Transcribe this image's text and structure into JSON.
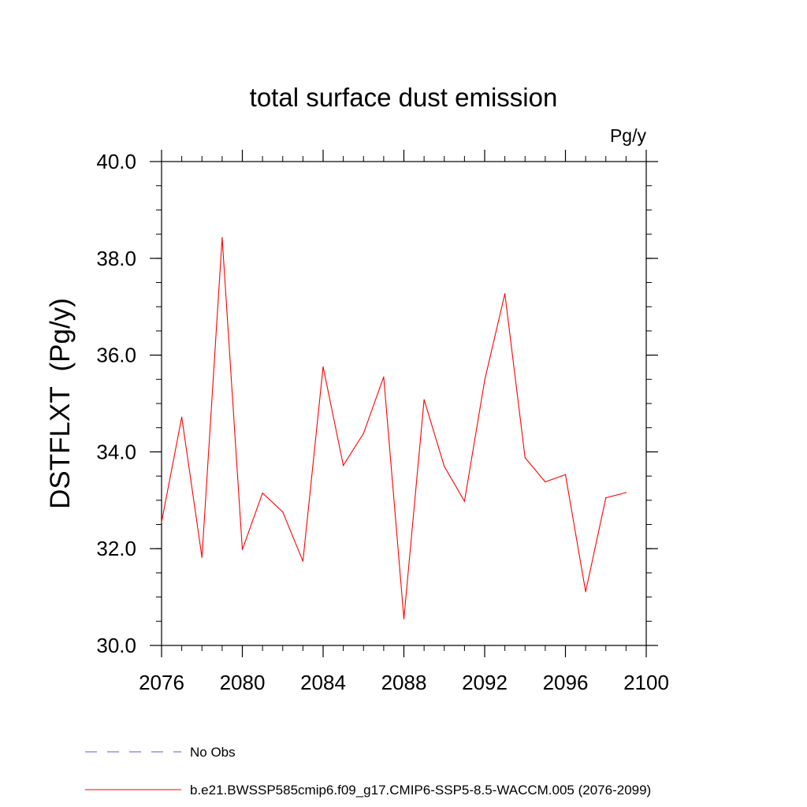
{
  "chart_data": {
    "type": "line",
    "title": "total surface dust emission",
    "units_label": "Pg/y",
    "ylabel": "DSTFLXT  (Pg/y)",
    "xlabel": "",
    "xlim": [
      2076,
      2100
    ],
    "ylim": [
      30.0,
      40.0
    ],
    "x_ticks": [
      "2076",
      "2080",
      "2084",
      "2088",
      "2092",
      "2096",
      "2100"
    ],
    "y_ticks": [
      "30.0",
      "32.0",
      "34.0",
      "36.0",
      "38.0",
      "40.0"
    ],
    "grid": false,
    "legend_position": "bottom-left",
    "x": [
      2076,
      2077,
      2078,
      2079,
      2080,
      2081,
      2082,
      2083,
      2084,
      2085,
      2086,
      2087,
      2088,
      2089,
      2090,
      2091,
      2092,
      2093,
      2094,
      2095,
      2096,
      2097,
      2098,
      2099
    ],
    "series": [
      {
        "name": "b.e21.BWSSP585cmip6.f09_g17.CMIP6-SSP5-8.5-WACCM.005 (2076-2099)",
        "color": "#ff0000",
        "values": [
          32.55,
          34.72,
          31.82,
          38.43,
          31.98,
          33.15,
          32.76,
          31.74,
          35.76,
          33.72,
          34.38,
          35.55,
          30.55,
          35.08,
          33.7,
          32.98,
          35.48,
          37.27,
          33.88,
          33.38,
          33.53,
          31.11,
          33.05,
          33.16
        ]
      }
    ],
    "legend": [
      {
        "label": "No Obs",
        "color": "#5a5ae0",
        "style": "dashed"
      },
      {
        "label": "b.e21.BWSSP585cmip6.f09_g17.CMIP6-SSP5-8.5-WACCM.005 (2076-2099)",
        "color": "#ff0000",
        "style": "solid"
      }
    ]
  }
}
